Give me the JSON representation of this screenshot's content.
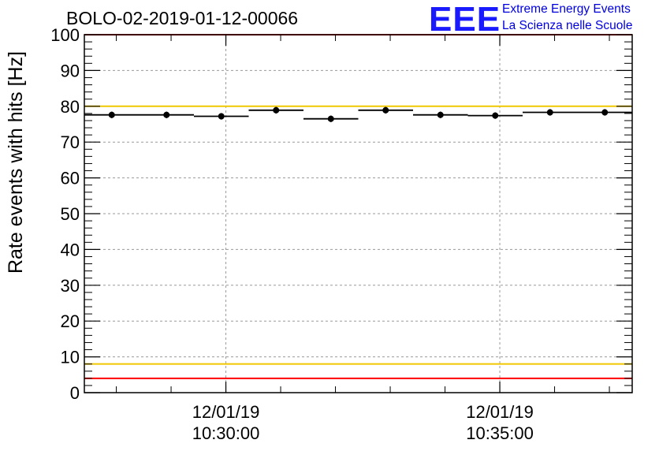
{
  "header": {
    "title": "BOLO-02-2019-01-12-00066"
  },
  "logo": {
    "mark": "EEE",
    "line1": "Extreme Energy Events",
    "line2": "La Scienza nelle Scuole",
    "color": "#1a1aff"
  },
  "chart_data": {
    "type": "scatter",
    "title": "BOLO-02-2019-01-12-00066",
    "ylabel": "Rate events with hits [Hz]",
    "xlabel": "",
    "ylim": [
      0,
      100
    ],
    "yticks": [
      0,
      10,
      20,
      30,
      40,
      50,
      60,
      70,
      80,
      90,
      100
    ],
    "xlim": [
      "10:27:25",
      "10:37:25"
    ],
    "xtick_labels": [
      {
        "date": "12/01/19",
        "time": "10:30:00"
      },
      {
        "date": "12/01/19",
        "time": "10:35:00"
      }
    ],
    "grid": true,
    "series": [
      {
        "x_start": [
          "10:27:25",
          "10:28:25",
          "10:29:25",
          "10:30:25",
          "10:31:25",
          "10:32:25",
          "10:33:25",
          "10:34:25",
          "10:35:25",
          "10:36:25"
        ],
        "x_end": [
          "10:28:25",
          "10:29:25",
          "10:30:25",
          "10:31:25",
          "10:32:25",
          "10:33:25",
          "10:34:25",
          "10:35:25",
          "10:36:25",
          "10:37:25"
        ],
        "values": [
          77.6,
          77.6,
          77.2,
          78.9,
          76.5,
          78.9,
          77.6,
          77.4,
          78.3,
          78.3
        ],
        "errors": [
          0.9,
          0.9,
          0.9,
          0.9,
          0.9,
          0.9,
          0.9,
          0.9,
          0.9,
          0.9
        ]
      }
    ],
    "reference_lines": [
      {
        "y": 100,
        "color": "#ff0000"
      },
      {
        "y": 80,
        "color": "#f0c800"
      },
      {
        "y": 8,
        "color": "#f0c800"
      },
      {
        "y": 4,
        "color": "#ff0000"
      }
    ]
  }
}
